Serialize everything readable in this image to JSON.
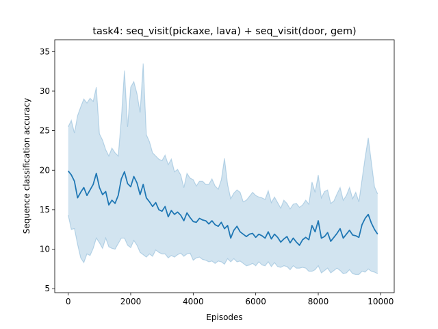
{
  "chart_data": {
    "type": "line",
    "title": "task4: seq_visit(pickaxe, lava) + seq_visit(door, gem)",
    "xlabel": "Episodes",
    "ylabel": "Sequence classification accuracy",
    "xlim": [
      -430,
      10430
    ],
    "ylim": [
      4.5,
      36.5
    ],
    "xticks": [
      0,
      2000,
      4000,
      6000,
      8000,
      10000
    ],
    "yticks": [
      5,
      10,
      15,
      20,
      25,
      30,
      35
    ],
    "grid": false,
    "legend": "none",
    "colors": {
      "line": "#1f77b4",
      "band": "#1f77b4"
    },
    "series": [
      {
        "x": [
          0,
          100,
          200,
          300,
          400,
          500,
          600,
          700,
          800,
          900,
          1000,
          1100,
          1200,
          1300,
          1400,
          1500,
          1600,
          1700,
          1800,
          1900,
          2000,
          2100,
          2200,
          2300,
          2400,
          2500,
          2600,
          2700,
          2800,
          2900,
          3000,
          3100,
          3200,
          3300,
          3400,
          3500,
          3600,
          3700,
          3800,
          3900,
          4000,
          4100,
          4200,
          4300,
          4400,
          4500,
          4600,
          4700,
          4800,
          4900,
          5000,
          5100,
          5200,
          5300,
          5400,
          5500,
          5600,
          5700,
          5800,
          5900,
          6000,
          6100,
          6200,
          6300,
          6400,
          6500,
          6600,
          6700,
          6800,
          6900,
          7000,
          7100,
          7200,
          7300,
          7400,
          7500,
          7600,
          7700,
          7800,
          7900,
          8000,
          8100,
          8200,
          8300,
          8400,
          8500,
          8600,
          8700,
          8800,
          8900,
          9000,
          9100,
          9200,
          9300,
          9400,
          9500,
          9600,
          9700,
          9800,
          9900
        ],
        "mean": [
          19.9,
          19.4,
          18.6,
          16.5,
          17.2,
          17.8,
          16.8,
          17.5,
          18.2,
          19.6,
          17.8,
          16.9,
          17.3,
          15.6,
          16.2,
          15.8,
          16.8,
          18.9,
          19.8,
          18.3,
          17.9,
          19.2,
          18.4,
          16.9,
          18.2,
          16.5,
          16.0,
          15.4,
          15.9,
          15.0,
          14.8,
          15.4,
          14.1,
          14.9,
          14.4,
          14.7,
          14.3,
          13.6,
          14.6,
          14.0,
          13.5,
          13.4,
          13.9,
          13.7,
          13.6,
          13.2,
          13.6,
          13.1,
          12.9,
          13.4,
          12.6,
          13.0,
          11.4,
          12.4,
          12.9,
          12.2,
          11.9,
          11.6,
          11.9,
          12.0,
          11.5,
          11.9,
          11.7,
          11.4,
          12.2,
          11.3,
          11.9,
          11.5,
          10.9,
          11.3,
          11.6,
          10.8,
          11.4,
          10.9,
          10.5,
          11.2,
          11.5,
          11.2,
          13.0,
          12.2,
          13.6,
          11.4,
          11.6,
          12.1,
          11.0,
          11.5,
          12.0,
          12.6,
          11.4,
          11.9,
          12.4,
          11.8,
          11.7,
          11.5,
          13.1,
          13.9,
          14.4,
          13.3,
          12.5,
          11.9
        ],
        "upper": [
          25.5,
          26.3,
          24.7,
          26.9,
          28.0,
          29.0,
          28.5,
          29.1,
          28.7,
          30.5,
          24.6,
          23.8,
          22.6,
          21.8,
          22.8,
          22.2,
          21.8,
          26.5,
          32.6,
          25.5,
          30.5,
          31.2,
          29.7,
          27.3,
          33.5,
          24.5,
          23.6,
          22.2,
          21.8,
          21.4,
          21.2,
          21.9,
          20.7,
          21.4,
          19.8,
          20.1,
          19.4,
          17.8,
          19.6,
          19.0,
          18.8,
          18.0,
          18.6,
          18.6,
          18.2,
          18.2,
          18.9,
          18.0,
          17.6,
          18.8,
          21.5,
          18.2,
          16.4,
          17.1,
          17.5,
          17.2,
          16.0,
          16.2,
          16.7,
          17.2,
          16.8,
          16.6,
          16.5,
          16.3,
          17.4,
          15.9,
          16.6,
          15.9,
          15.2,
          16.2,
          15.8,
          15.1,
          15.7,
          15.8,
          15.3,
          15.6,
          16.2,
          15.7,
          18.5,
          17.2,
          19.4,
          16.5,
          17.3,
          17.5,
          15.8,
          16.1,
          17.0,
          17.8,
          16.2,
          16.8,
          17.8,
          16.4,
          17.2,
          16.0,
          18.8,
          21.6,
          24.1,
          21.0,
          17.9,
          17.0
        ],
        "lower": [
          14.3,
          12.5,
          12.6,
          10.6,
          8.9,
          8.3,
          9.4,
          9.2,
          10.1,
          11.4,
          10.8,
          10.1,
          11.4,
          10.3,
          10.1,
          10.0,
          10.7,
          11.4,
          11.4,
          10.5,
          10.2,
          11.1,
          10.5,
          9.6,
          9.3,
          9.0,
          9.4,
          9.1,
          9.9,
          9.6,
          9.4,
          9.4,
          8.9,
          9.2,
          9.0,
          9.3,
          9.5,
          9.1,
          9.4,
          9.5,
          8.6,
          8.9,
          9.0,
          8.7,
          8.6,
          8.4,
          8.5,
          8.2,
          8.5,
          8.4,
          8.1,
          8.8,
          8.4,
          8.8,
          8.4,
          8.5,
          8.2,
          7.9,
          8.0,
          8.2,
          7.9,
          8.4,
          8.0,
          7.9,
          8.4,
          7.8,
          8.3,
          7.8,
          7.7,
          7.9,
          7.8,
          7.4,
          7.9,
          7.6,
          7.6,
          7.7,
          7.6,
          7.2,
          7.2,
          7.4,
          7.9,
          7.0,
          7.3,
          7.6,
          7.0,
          7.3,
          7.6,
          7.3,
          6.9,
          7.0,
          7.4,
          6.9,
          6.8,
          6.8,
          7.2,
          7.1,
          7.5,
          7.2,
          7.1,
          6.9
        ]
      }
    ]
  }
}
